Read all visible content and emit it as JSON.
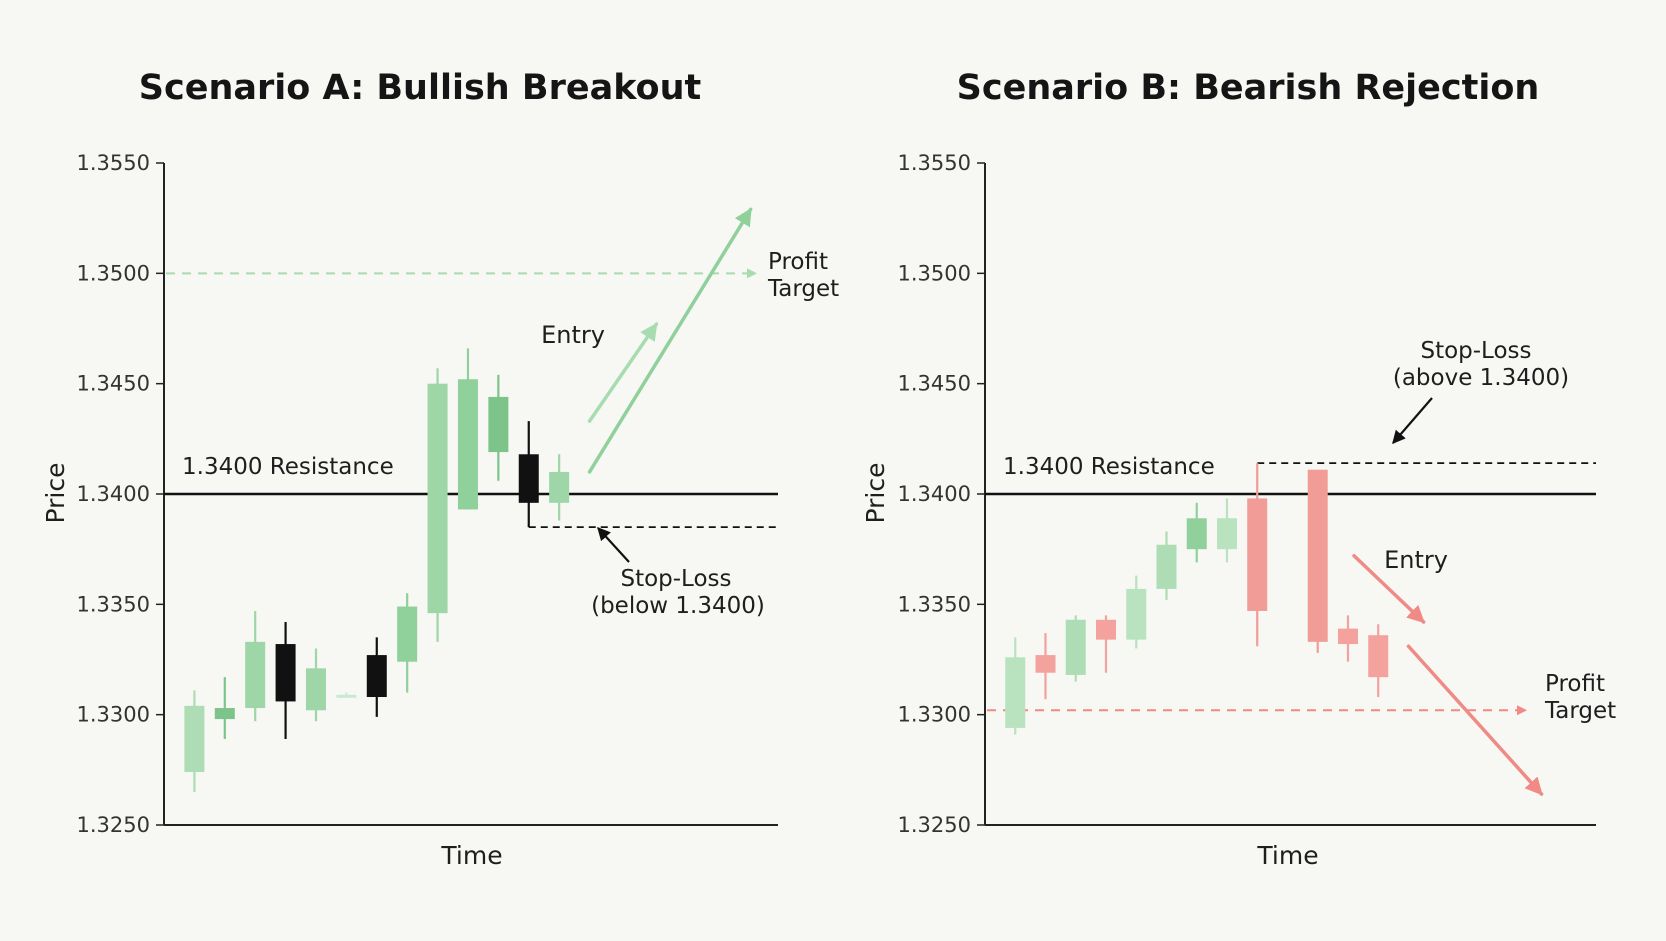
{
  "chart_data": [
    {
      "type": "candlestick",
      "title": "Scenario A: Bullish Breakout",
      "xlabel": "Time",
      "ylabel": "Price",
      "ylim": [
        1.325,
        1.355
      ],
      "yticks": [
        "1.3550",
        "1.3500",
        "1.3450",
        "1.3400",
        "1.3350",
        "1.3300",
        "1.3250"
      ],
      "ytick_values": [
        1.355,
        1.35,
        1.345,
        1.34,
        1.335,
        1.33,
        1.325
      ],
      "grid": false,
      "resistance": {
        "value": 1.34,
        "label": "1.3400 Resistance"
      },
      "profit_target": {
        "value": 1.35,
        "label": [
          "Profit",
          "Target"
        ],
        "color": "#a7dcb0"
      },
      "stop_loss": {
        "value": 1.3385,
        "label": [
          "Stop-Loss",
          "(below 1.3400)"
        ]
      },
      "entry_label": "Entry",
      "candles": [
        {
          "x": 1,
          "open": 1.3274,
          "close": 1.3304,
          "high": 1.3311,
          "low": 1.3265,
          "color": "#aedcb4"
        },
        {
          "x": 2,
          "open": 1.3298,
          "close": 1.3303,
          "high": 1.3317,
          "low": 1.3289,
          "color": "#7cc48a"
        },
        {
          "x": 3,
          "open": 1.3303,
          "close": 1.3333,
          "high": 1.3347,
          "low": 1.3297,
          "color": "#9fd6a8"
        },
        {
          "x": 4,
          "open": 1.3332,
          "close": 1.3306,
          "high": 1.3342,
          "low": 1.3289,
          "color": "#111111"
        },
        {
          "x": 5,
          "open": 1.3302,
          "close": 1.3321,
          "high": 1.333,
          "low": 1.3297,
          "color": "#9fd6a8"
        },
        {
          "x": 6,
          "open": 1.3308,
          "close": 1.3309,
          "high": 1.331,
          "low": 1.3308,
          "color": "#c9ead0"
        },
        {
          "x": 7,
          "open": 1.3327,
          "close": 1.3308,
          "high": 1.3335,
          "low": 1.3299,
          "color": "#111111"
        },
        {
          "x": 8,
          "open": 1.3324,
          "close": 1.3349,
          "high": 1.3355,
          "low": 1.331,
          "color": "#8fd09b"
        },
        {
          "x": 9,
          "open": 1.3346,
          "close": 1.345,
          "high": 1.3457,
          "low": 1.3333,
          "color": "#9fd6a8"
        },
        {
          "x": 10,
          "open": 1.3393,
          "close": 1.3452,
          "high": 1.3466,
          "low": 1.3393,
          "color": "#8fd09b"
        },
        {
          "x": 11,
          "open": 1.3419,
          "close": 1.3444,
          "high": 1.3454,
          "low": 1.3406,
          "color": "#7cc48a"
        },
        {
          "x": 12,
          "open": 1.3418,
          "close": 1.3396,
          "high": 1.3433,
          "low": 1.3385,
          "color": "#111111"
        },
        {
          "x": 13,
          "open": 1.3396,
          "close": 1.341,
          "high": 1.3418,
          "low": 1.3388,
          "color": "#9fd6a8"
        }
      ],
      "arrows": [
        {
          "from": [
            14.0,
            1.3433
          ],
          "to": [
            16.2,
            1.3477
          ],
          "color": "#a7dcb0"
        },
        {
          "from": [
            14.0,
            1.341
          ],
          "to": [
            19.3,
            1.3529
          ],
          "color": "#8fd09b"
        }
      ]
    },
    {
      "type": "candlestick",
      "title": "Scenario B: Bearish Rejection",
      "xlabel": "Time",
      "ylabel": "Price",
      "ylim": [
        1.325,
        1.355
      ],
      "yticks": [
        "1.3550",
        "1.3500",
        "1.3450",
        "1.3400",
        "1.3350",
        "1.3300",
        "1.3250"
      ],
      "ytick_values": [
        1.355,
        1.35,
        1.345,
        1.34,
        1.335,
        1.33,
        1.325
      ],
      "grid": false,
      "resistance": {
        "value": 1.34,
        "label": "1.3400 Resistance"
      },
      "profit_target": {
        "value": 1.3302,
        "label": [
          "Profit",
          "Target"
        ],
        "color": "#f08a84"
      },
      "stop_loss": {
        "value": 1.3414,
        "label": [
          "Stop-Loss",
          "(above 1.3400)"
        ]
      },
      "entry_label": "Entry",
      "candles": [
        {
          "x": 1,
          "open": 1.3294,
          "close": 1.3326,
          "high": 1.3335,
          "low": 1.3291,
          "color": "#b9e2bf"
        },
        {
          "x": 2,
          "open": 1.3319,
          "close": 1.3327,
          "high": 1.3337,
          "low": 1.3307,
          "color": "#f4a29d"
        },
        {
          "x": 3,
          "open": 1.3318,
          "close": 1.3343,
          "high": 1.3345,
          "low": 1.3315,
          "color": "#aedcb4"
        },
        {
          "x": 4,
          "open": 1.3343,
          "close": 1.3334,
          "high": 1.3345,
          "low": 1.3319,
          "color": "#f4a29d"
        },
        {
          "x": 5,
          "open": 1.3334,
          "close": 1.3357,
          "high": 1.3363,
          "low": 1.333,
          "color": "#b9e2bf"
        },
        {
          "x": 6,
          "open": 1.3357,
          "close": 1.3377,
          "high": 1.3383,
          "low": 1.3352,
          "color": "#aedcb4"
        },
        {
          "x": 7,
          "open": 1.3375,
          "close": 1.3389,
          "high": 1.3396,
          "low": 1.3369,
          "color": "#8fd09b"
        },
        {
          "x": 8,
          "open": 1.3375,
          "close": 1.3389,
          "high": 1.3398,
          "low": 1.3369,
          "color": "#b9e2bf"
        },
        {
          "x": 9,
          "open": 1.3398,
          "close": 1.3347,
          "high": 1.3414,
          "low": 1.3331,
          "color": "#f19c96"
        },
        {
          "x": 11,
          "open": 1.3411,
          "close": 1.3333,
          "high": 1.3411,
          "low": 1.3328,
          "color": "#f19c96"
        },
        {
          "x": 12,
          "open": 1.3339,
          "close": 1.3332,
          "high": 1.3345,
          "low": 1.3324,
          "color": "#f4a29d"
        },
        {
          "x": 13,
          "open": 1.3336,
          "close": 1.3317,
          "high": 1.3341,
          "low": 1.3308,
          "color": "#f4a29d"
        }
      ],
      "arrows": [
        {
          "from": [
            12.2,
            1.3372
          ],
          "to": [
            14.5,
            1.3342
          ],
          "color": "#f08a84"
        },
        {
          "from": [
            14.0,
            1.3331
          ],
          "to": [
            18.4,
            1.3264
          ],
          "color": "#f08a84"
        }
      ]
    }
  ]
}
